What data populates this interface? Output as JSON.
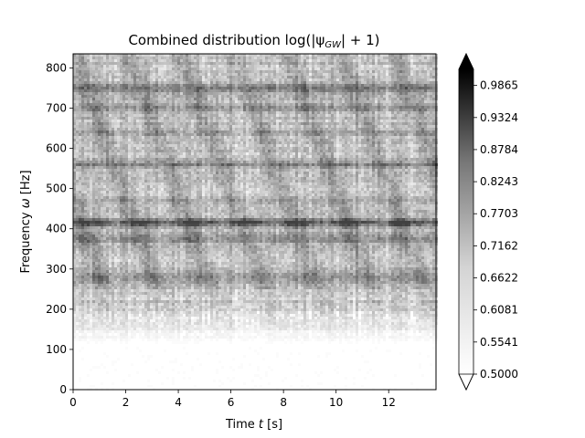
{
  "chart_data": {
    "type": "heatmap",
    "title": "Combined distribution log(|ψ",
    "title_sub": "GW",
    "title_tail": "| + 1)",
    "xlabel_pre": "Time ",
    "xlabel_var": "t",
    "xlabel_post": " [s]",
    "ylabel_pre": "Frequency ",
    "ylabel_var": "ω",
    "ylabel_post": " [Hz]",
    "xlim": [
      0,
      13.8
    ],
    "ylim": [
      0,
      835
    ],
    "x_ticks": [
      0,
      2,
      4,
      6,
      8,
      10,
      12
    ],
    "x_tick_labels": [
      "0",
      "2",
      "4",
      "6",
      "8",
      "10",
      "12"
    ],
    "y_ticks": [
      0,
      100,
      200,
      300,
      400,
      500,
      600,
      700,
      800
    ],
    "y_tick_labels": [
      "0",
      "100",
      "200",
      "300",
      "400",
      "500",
      "600",
      "700",
      "800"
    ],
    "colorbar": {
      "vmin": 0.5,
      "vmax": 1.0136,
      "ticks": [
        0.5,
        0.5541,
        0.6081,
        0.6622,
        0.7162,
        0.7703,
        0.8243,
        0.8784,
        0.9324,
        0.9865
      ],
      "tick_labels": [
        "0.5000",
        "0.5541",
        "0.6081",
        "0.6622",
        "0.7162",
        "0.7703",
        "0.8243",
        "0.8784",
        "0.9324",
        "0.9865"
      ],
      "extend": "both",
      "colormap": "Greys"
    },
    "grid": false,
    "legend": "none",
    "colors": {
      "low": "#ffffff",
      "high": "#000000"
    }
  }
}
